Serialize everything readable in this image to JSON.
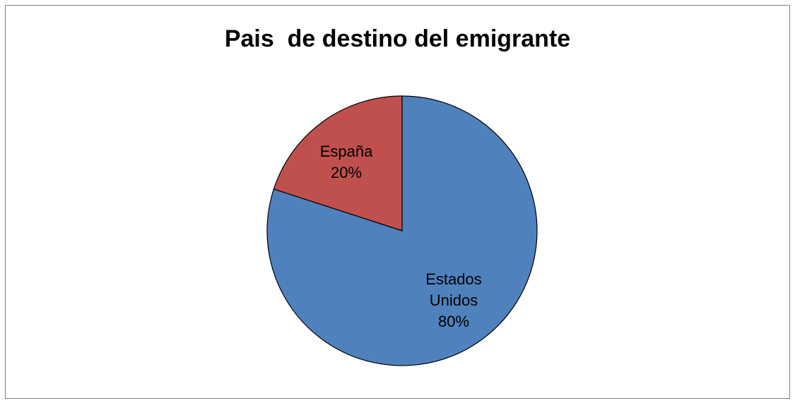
{
  "chart_data": {
    "type": "pie",
    "title": "Pais  de destino del emigrante",
    "slices": [
      {
        "label_lines": [
          "España",
          "20%"
        ],
        "label": "España",
        "value": 20,
        "color": "#C0504D"
      },
      {
        "label_lines": [
          "Estados",
          "Unidos",
          "80%"
        ],
        "label": "Estados Unidos",
        "value": 80,
        "color": "#4F81BD"
      }
    ],
    "start_angle_deg": 0,
    "direction": "counter-clockwise",
    "legend": "none",
    "data_labels": "inside"
  }
}
